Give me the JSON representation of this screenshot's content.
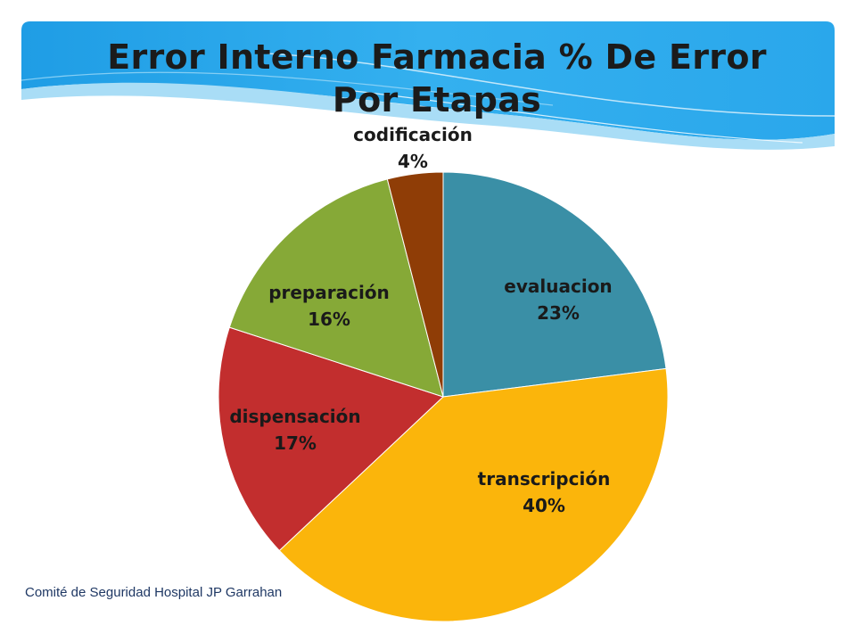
{
  "slide": {
    "title_line1": "Error Interno Farmacia % De Error",
    "title_line2": "Por Etapas",
    "footer": "Comité de Seguridad Hospital JP Garrahan"
  },
  "colors": {
    "header_blue": "#2aa3e8",
    "header_light": "#7fd0f7"
  },
  "chart_data": {
    "type": "pie",
    "title": "Error Interno Farmacia % De Error Por Etapas",
    "start_angle_deg": 0,
    "direction": "clockwise",
    "slices": [
      {
        "name": "evaluacion",
        "value": 23,
        "label": "23%",
        "color": "#3a8fa6"
      },
      {
        "name": "transcripción",
        "value": 40,
        "label": "40%",
        "color": "#fbb50b"
      },
      {
        "name": "dispensación",
        "value": 17,
        "label": "17%",
        "color": "#c22e2e"
      },
      {
        "name": "preparación",
        "value": 16,
        "label": "16%",
        "color": "#86a937"
      },
      {
        "name": "codificación",
        "value": 4,
        "label": "4%",
        "color": "#8f3d06"
      }
    ]
  }
}
